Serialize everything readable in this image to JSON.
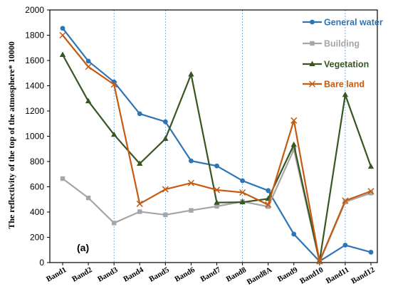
{
  "chart_data": {
    "type": "line",
    "panel_label": "(a)",
    "ylabel": "The reflectivity of the top of the atmosphere* 10000",
    "ylim": [
      0,
      2000
    ],
    "yticks": [
      0,
      200,
      400,
      600,
      800,
      1000,
      1200,
      1400,
      1600,
      1800,
      2000
    ],
    "categories": [
      "Band1",
      "Band2",
      "Band3",
      "Band4",
      "Band5",
      "Band6",
      "Band7",
      "Band8",
      "Band8A",
      "Band9",
      "Band10",
      "Band11",
      "Band12"
    ],
    "guide_lines_at": [
      "Band3",
      "Band5",
      "Band8",
      "Band11"
    ],
    "legend_position": "top-right",
    "series": [
      {
        "name": "General water",
        "color": "#2E75B6",
        "marker": "circle",
        "values": [
          1855,
          1595,
          1430,
          1178,
          1115,
          805,
          765,
          648,
          570,
          225,
          10,
          138,
          82
        ]
      },
      {
        "name": "Building",
        "color": "#A6A6A6",
        "marker": "square",
        "values": [
          665,
          512,
          313,
          403,
          378,
          413,
          445,
          483,
          443,
          895,
          5,
          480,
          550
        ]
      },
      {
        "name": "Vegetation",
        "color": "#375623",
        "marker": "triangle",
        "values": [
          1645,
          1278,
          1013,
          783,
          980,
          1490,
          475,
          478,
          505,
          933,
          10,
          1328,
          760
        ]
      },
      {
        "name": "Bare land",
        "color": "#C55A11",
        "marker": "x",
        "values": [
          1800,
          1550,
          1410,
          465,
          580,
          630,
          575,
          555,
          458,
          1125,
          10,
          490,
          565
        ]
      }
    ]
  }
}
